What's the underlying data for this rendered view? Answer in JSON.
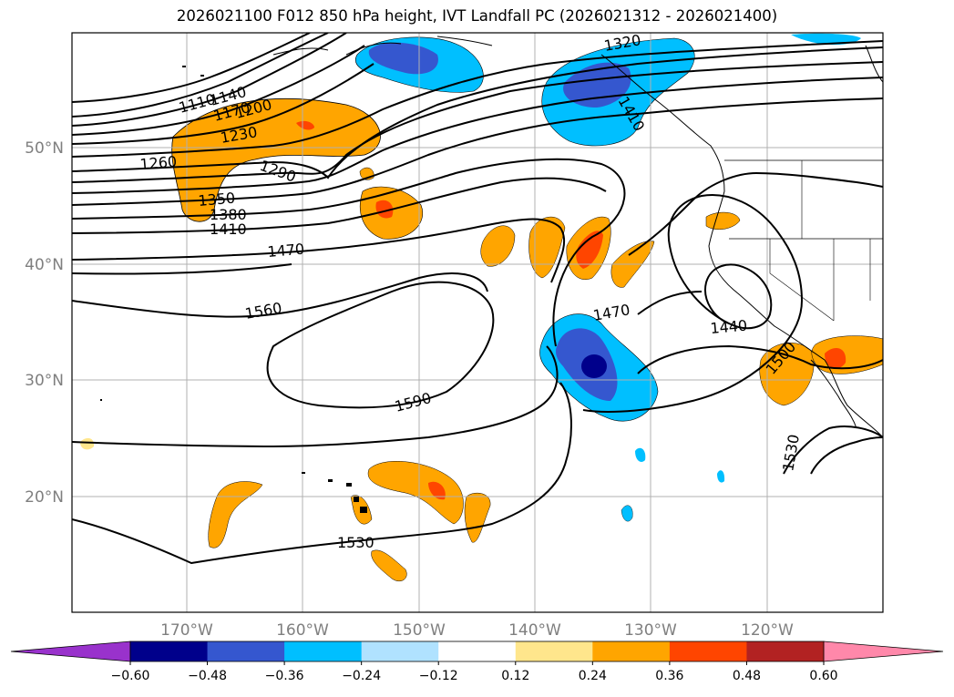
{
  "title": "2026021100 F012 850 hPa height, IVT Landfall PC (2026021312 - 2026021400)",
  "map": {
    "lat_labels": [
      "50°N",
      "40°N",
      "30°N",
      "20°N"
    ],
    "lon_labels": [
      "170°W",
      "160°W",
      "150°W",
      "140°W",
      "130°W",
      "120°W"
    ],
    "contour_labels": [
      "1110",
      "1140",
      "1170",
      "1200",
      "1230",
      "1260",
      "1290",
      "1320",
      "1350",
      "1380",
      "1410",
      "1470",
      "1560",
      "1590",
      "1530",
      "1470",
      "1440",
      "1500",
      "1530",
      "1410"
    ]
  },
  "colorbar": {
    "ticks": [
      "−0.60",
      "−0.48",
      "−0.36",
      "−0.24",
      "−0.12",
      "0.12",
      "0.24",
      "0.36",
      "0.48",
      "0.60"
    ],
    "colors": [
      "#9932cc",
      "#00008b",
      "#3557cf",
      "#00bfff",
      "#b0e2ff",
      "#ffffff",
      "#ffe68c",
      "#ffa500",
      "#ff4500",
      "#b22222",
      "#ff88aa"
    ]
  }
}
